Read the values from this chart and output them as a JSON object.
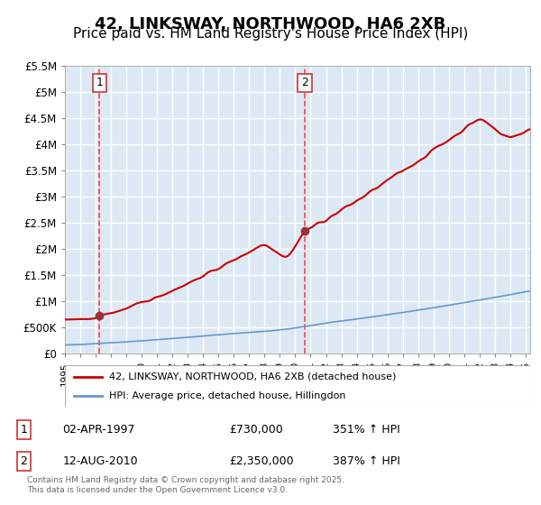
{
  "title": "42, LINKSWAY, NORTHWOOD, HA6 2XB",
  "subtitle": "Price paid vs. HM Land Registry's House Price Index (HPI)",
  "title_fontsize": 13,
  "subtitle_fontsize": 11,
  "background_color": "#dce9f5",
  "figure_background": "#ffffff",
  "x_start_year": 1995,
  "x_end_year": 2025,
  "ylim": [
    0,
    5500000
  ],
  "yticks": [
    0,
    500000,
    1000000,
    1500000,
    2000000,
    2500000,
    3000000,
    3500000,
    4000000,
    4500000,
    5000000,
    5500000
  ],
  "ytick_labels": [
    "£0",
    "£500K",
    "£1M",
    "£1.5M",
    "£2M",
    "£2.5M",
    "£3M",
    "£3.5M",
    "£4M",
    "£4.5M",
    "£5M",
    "£5.5M"
  ],
  "red_line_color": "#cc0000",
  "blue_line_color": "#6699cc",
  "marker_color": "#993333",
  "vline_color": "#ff4444",
  "sale1_year": 1997.25,
  "sale1_price": 730000,
  "sale2_year": 2010.62,
  "sale2_price": 2350000,
  "legend_entry1": "42, LINKSWAY, NORTHWOOD, HA6 2XB (detached house)",
  "legend_entry2": "HPI: Average price, detached house, Hillingdon",
  "table_label1": "1",
  "table_date1": "02-APR-1997",
  "table_price1": "£730,000",
  "table_hpi1": "351% ↑ HPI",
  "table_label2": "2",
  "table_date2": "12-AUG-2010",
  "table_price2": "£2,350,000",
  "table_hpi2": "387% ↑ HPI",
  "footer": "Contains HM Land Registry data © Crown copyright and database right 2025.\nThis data is licensed under the Open Government Licence v3.0.",
  "grid_color": "#ffffff",
  "font_family": "DejaVu Sans"
}
